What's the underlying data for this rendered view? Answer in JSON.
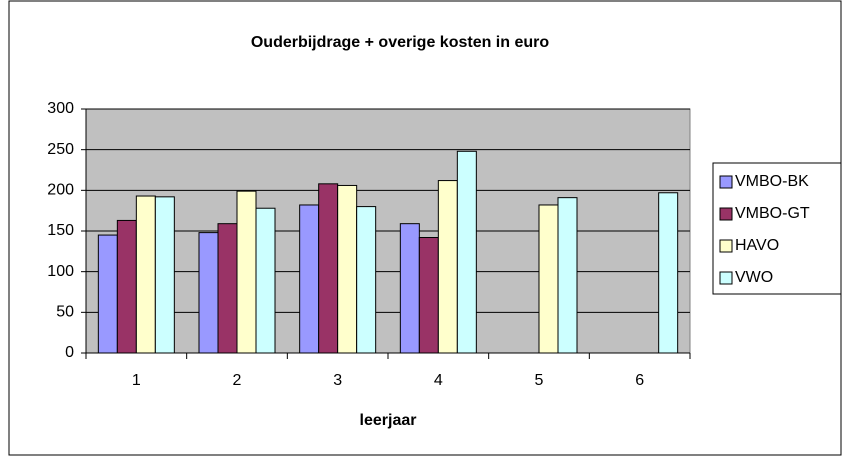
{
  "chart_data": {
    "type": "bar",
    "title": "Ouderbijdrage + overige kosten in euro",
    "x_label": "leerjaar",
    "categories": [
      "1",
      "2",
      "3",
      "4",
      "5",
      "6"
    ],
    "series": [
      {
        "name": "VMBO-BK",
        "color": "#9999ff",
        "values": [
          145,
          148,
          182,
          159,
          null,
          null
        ]
      },
      {
        "name": "VMBO-GT",
        "color": "#993366",
        "values": [
          163,
          159,
          208,
          142,
          null,
          null
        ]
      },
      {
        "name": "HAVO",
        "color": "#ffffcc",
        "values": [
          193,
          199,
          206,
          212,
          182,
          null
        ]
      },
      {
        "name": "VWO",
        "color": "#ccffff",
        "values": [
          192,
          178,
          180,
          248,
          191,
          197
        ]
      }
    ],
    "ylim": [
      0,
      300
    ],
    "yticks": [
      0,
      50,
      100,
      150,
      200,
      250,
      300
    ],
    "grid": true,
    "legend": "right"
  }
}
